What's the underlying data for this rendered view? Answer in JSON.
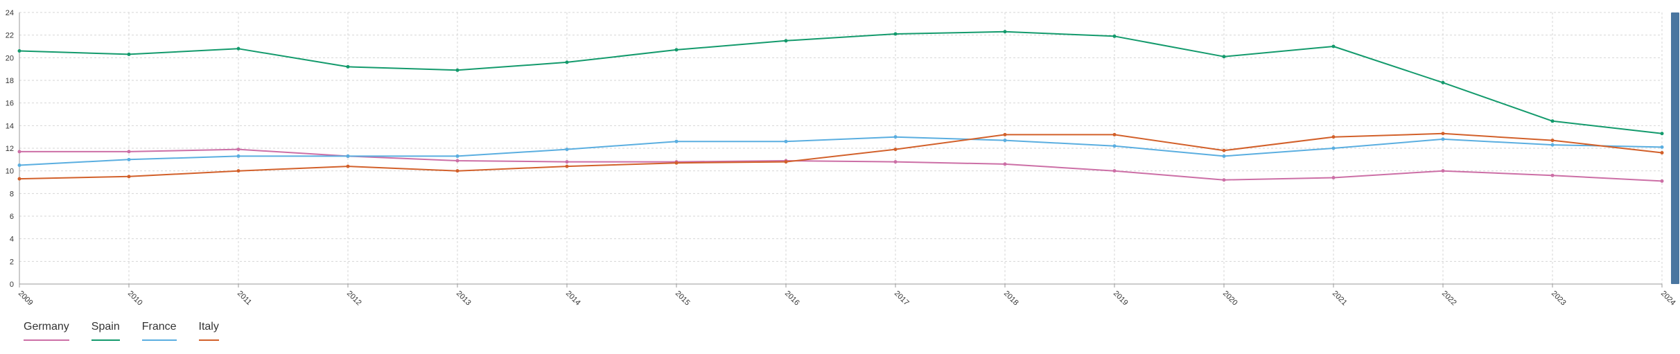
{
  "chart_data": {
    "type": "line",
    "x": [
      "2009",
      "2010",
      "2011",
      "2012",
      "2013",
      "2014",
      "2015",
      "2016",
      "2017",
      "2018",
      "2019",
      "2020",
      "2021",
      "2022",
      "2023",
      "2024"
    ],
    "ylim": [
      0,
      24
    ],
    "yticks": [
      "0",
      "2",
      "4",
      "6",
      "8",
      "10",
      "12",
      "14",
      "16",
      "18",
      "20",
      "22",
      "24"
    ],
    "grid": true,
    "legend_position": "bottom-left",
    "series": [
      {
        "name": "Germany",
        "color": "#cc6fa6",
        "values": [
          11.7,
          11.7,
          11.9,
          11.3,
          10.9,
          10.8,
          10.8,
          10.9,
          10.8,
          10.6,
          10.0,
          9.2,
          9.4,
          10.0,
          9.6,
          9.1
        ]
      },
      {
        "name": "Spain",
        "color": "#139a6c",
        "values": [
          20.6,
          20.3,
          20.8,
          19.2,
          18.9,
          19.6,
          20.7,
          21.5,
          22.1,
          22.3,
          21.9,
          20.1,
          21.0,
          17.8,
          14.4,
          13.3
        ]
      },
      {
        "name": "France",
        "color": "#5aaee0",
        "values": [
          10.5,
          11.0,
          11.3,
          11.3,
          11.3,
          11.9,
          12.6,
          12.6,
          13.0,
          12.7,
          12.2,
          11.3,
          12.0,
          12.8,
          12.3,
          12.1
        ]
      },
      {
        "name": "Italy",
        "color": "#d2602a",
        "values": [
          9.3,
          9.5,
          10.0,
          10.4,
          10.0,
          10.4,
          10.7,
          10.8,
          11.9,
          13.2,
          13.2,
          11.8,
          13.0,
          13.3,
          12.7,
          11.6
        ]
      }
    ]
  }
}
